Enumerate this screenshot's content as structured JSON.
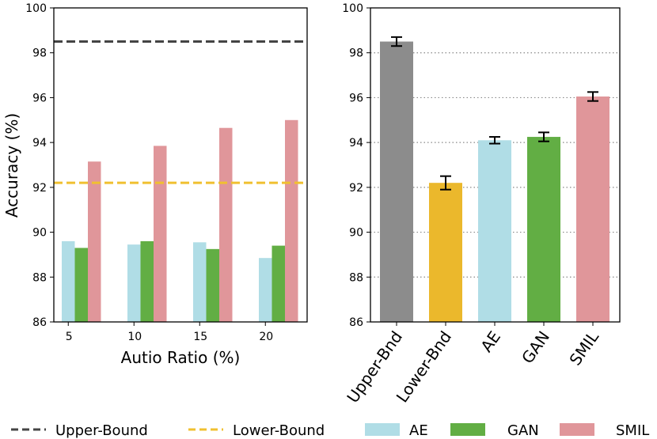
{
  "colors": {
    "upper_bound": "#444444",
    "lower_bound": "#f0c030",
    "AE": "#b0dde6",
    "GAN": "#62ae44",
    "SMIL": "#e0969a",
    "upper_bnd_bar": "#8c8c8c",
    "lower_bnd_bar": "#ebb82c",
    "grid": "#888888"
  },
  "chart_data": [
    {
      "type": "bar",
      "ylabel": "Accuracy (%)",
      "xlabel": "Autio Ratio (%)",
      "ylim": [
        86,
        100
      ],
      "yticks": [
        "86",
        "88",
        "90",
        "92",
        "94",
        "96",
        "98",
        "100"
      ],
      "categories": [
        "5",
        "10",
        "15",
        "20"
      ],
      "series": [
        {
          "name": "AE",
          "values": [
            89.6,
            89.45,
            89.55,
            88.85
          ]
        },
        {
          "name": "GAN",
          "values": [
            89.3,
            89.6,
            89.25,
            89.4
          ]
        },
        {
          "name": "SMIL",
          "values": [
            93.15,
            93.85,
            94.65,
            95.0
          ]
        }
      ],
      "reference_lines": [
        {
          "name": "Upper-Bound",
          "value": 98.5,
          "style": "dashed"
        },
        {
          "name": "Lower-Bound",
          "value": 92.2,
          "style": "dashed"
        }
      ],
      "grid": false
    },
    {
      "type": "bar",
      "ylim": [
        86,
        100
      ],
      "yticks": [
        "86",
        "88",
        "90",
        "92",
        "94",
        "96",
        "98",
        "100"
      ],
      "categories": [
        "Upper-Bnd",
        "Lower-Bnd",
        "AE",
        "GAN",
        "SMIL"
      ],
      "values": [
        98.5,
        92.2,
        94.1,
        94.25,
        96.05
      ],
      "errors": [
        0.2,
        0.3,
        0.15,
        0.2,
        0.2
      ],
      "grid": "horizontal-dotted"
    }
  ],
  "legend": {
    "items": [
      {
        "label": "Upper-Bound",
        "kind": "dashed-line",
        "color_key": "upper_bound"
      },
      {
        "label": "Lower-Bound",
        "kind": "dashed-line",
        "color_key": "lower_bound"
      },
      {
        "label": "AE",
        "kind": "patch",
        "color_key": "AE"
      },
      {
        "label": "GAN",
        "kind": "patch",
        "color_key": "GAN"
      },
      {
        "label": "SMIL",
        "kind": "patch",
        "color_key": "SMIL"
      }
    ]
  }
}
